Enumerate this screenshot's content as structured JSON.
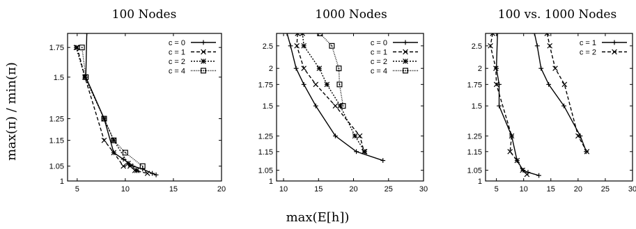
{
  "figure": {
    "xlabel": "max(E[h])",
    "ylabel": "max(π) / min(π)"
  },
  "chart_data": [
    {
      "type": "line",
      "title": "100 Nodes",
      "xlabel": "max(E[h])",
      "ylabel": "max(π) / min(π)",
      "xlim": [
        4,
        20
      ],
      "ylim": [
        1,
        1.9
      ],
      "xticks": [
        "5",
        "10",
        "15",
        "20"
      ],
      "yticks": [
        "1",
        "1.05",
        "1.15",
        "1.25",
        "1.5",
        "1.75"
      ],
      "grid": false,
      "legend": "top-right",
      "series": [
        {
          "name": "c = 0",
          "style": "solid",
          "marker": "plus",
          "x": [
            6.0,
            5.9,
            7.8,
            8.8,
            9.8,
            10.8,
            11.8,
            12.8,
            13.2
          ],
          "y": [
            1.9,
            1.5,
            1.25,
            1.1,
            1.075,
            1.05,
            1.04,
            1.025,
            1.02
          ]
        },
        {
          "name": "c = 1",
          "style": "dashed",
          "marker": "x",
          "x": [
            5.0,
            5.8,
            7.8,
            8.8,
            9.8,
            10.5,
            11.0,
            12.3
          ],
          "y": [
            1.75,
            1.5,
            1.15,
            1.1,
            1.05,
            1.05,
            1.035,
            1.025
          ]
        },
        {
          "name": "c = 2",
          "style": "dotted",
          "marker": "star",
          "x": [
            4.9,
            5.8,
            7.8,
            8.8,
            10.3,
            11.2
          ],
          "y": [
            1.75,
            1.5,
            1.25,
            1.15,
            1.06,
            1.035
          ]
        },
        {
          "name": "c = 4",
          "style": "densedot",
          "marker": "boxdot",
          "x": [
            5.5,
            5.9,
            7.8,
            8.8,
            10.0,
            11.8
          ],
          "y": [
            1.75,
            1.5,
            1.25,
            1.15,
            1.1,
            1.05
          ]
        }
      ]
    },
    {
      "type": "line",
      "title": "1000 Nodes",
      "xlabel": "max(E[h])",
      "ylabel": "max(π) / min(π)",
      "xlim": [
        9,
        30
      ],
      "ylim": [
        1,
        2.9
      ],
      "xticks": [
        "10",
        "15",
        "20",
        "25",
        "30"
      ],
      "yticks": [
        "1",
        "1.05",
        "1.15",
        "1.25",
        "1.5",
        "1.75",
        "2",
        "2.5"
      ],
      "grid": false,
      "legend": "top-right",
      "series": [
        {
          "name": "c = 0",
          "style": "solid",
          "marker": "plus",
          "x": [
            10.5,
            11.0,
            11.8,
            12.9,
            14.6,
            17.4,
            20.4,
            24.2
          ],
          "y": [
            2.9,
            2.5,
            2.0,
            1.75,
            1.5,
            1.25,
            1.15,
            1.1
          ]
        },
        {
          "name": "c = 1",
          "style": "dashed",
          "marker": "x",
          "x": [
            12.0,
            11.9,
            12.9,
            14.6,
            17.4,
            20.9,
            21.5
          ],
          "y": [
            2.9,
            2.5,
            2.0,
            1.75,
            1.5,
            1.25,
            1.15
          ]
        },
        {
          "name": "c = 2",
          "style": "dotted",
          "marker": "star",
          "x": [
            12.7,
            12.9,
            15.1,
            16.2,
            18.1,
            20.2,
            21.6
          ],
          "y": [
            2.9,
            2.5,
            2.0,
            1.75,
            1.5,
            1.25,
            1.15
          ]
        },
        {
          "name": "c = 4",
          "style": "densedot",
          "marker": "boxdot",
          "x": [
            15.2,
            16.9,
            17.9,
            18.0,
            18.5
          ],
          "y": [
            2.9,
            2.5,
            2.0,
            1.75,
            1.5
          ]
        }
      ]
    },
    {
      "type": "line",
      "title": "100 vs. 1000 Nodes",
      "xlabel": "max(E[h])",
      "ylabel": "max(π) / min(π)",
      "xlim": [
        3,
        30
      ],
      "ylim": [
        1,
        2.9
      ],
      "xticks": [
        "5",
        "10",
        "15",
        "20",
        "25",
        "30"
      ],
      "yticks": [
        "1",
        "1.05",
        "1.15",
        "1.25",
        "1.5",
        "1.75",
        "2",
        "2.5"
      ],
      "grid": false,
      "legend": "top-right",
      "series": [
        {
          "name": "c = 1",
          "style": "solid",
          "marker": "plus",
          "x": [
            5.2,
            5.0,
            5.5,
            5.5,
            7.8,
            8.8,
            9.9,
            10.8,
            12.8
          ],
          "y": [
            2.9,
            2.0,
            1.75,
            1.5,
            1.25,
            1.1,
            1.05,
            1.04,
            1.025
          ],
          "x2": [
            12.0,
            12.5,
            13.2,
            14.6,
            17.4,
            20.4,
            21.5
          ],
          "y2": [
            2.9,
            2.5,
            2.0,
            1.75,
            1.5,
            1.25,
            1.15
          ]
        },
        {
          "name": "c = 2",
          "style": "dashed",
          "marker": "x",
          "x": [
            4.3,
            3.9,
            4.9,
            5.0,
            7.8,
            7.5,
            8.8,
            9.8,
            10.6
          ],
          "y": [
            2.9,
            2.5,
            2.0,
            1.75,
            1.25,
            1.15,
            1.1,
            1.05,
            1.03
          ],
          "x2": [
            14.3,
            14.8,
            15.8,
            17.5,
            20.0,
            21.6
          ],
          "y2": [
            2.9,
            2.5,
            2.0,
            1.75,
            1.25,
            1.15
          ]
        }
      ]
    }
  ]
}
